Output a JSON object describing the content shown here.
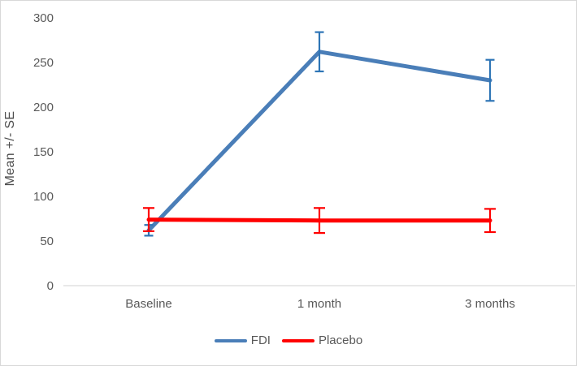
{
  "chart_data": {
    "type": "line",
    "title": "",
    "xlabel": "",
    "ylabel": "Mean +/- SE",
    "categories": [
      "Baseline",
      "1 month",
      "3 months"
    ],
    "series": [
      {
        "name": "FDI",
        "color": "#4a7eb8",
        "error_color": "#2e75b6",
        "values": [
          62,
          262,
          230
        ],
        "se": [
          6,
          22,
          23
        ]
      },
      {
        "name": "Placebo",
        "color": "#ff0000",
        "error_color": "#ff0000",
        "values": [
          74,
          73,
          73
        ],
        "se": [
          13,
          14,
          13
        ]
      }
    ],
    "ylim": [
      0,
      300
    ],
    "yticks": [
      0,
      50,
      100,
      150,
      200,
      250,
      300
    ],
    "grid": false,
    "error_bars": true,
    "legend_position": "bottom"
  },
  "colors": {
    "background": "#ffffff",
    "frame_border": "#d8d8d8",
    "axis_line": "#d9d9d9",
    "tick_text": "#595959",
    "axis_title_text": "#4d4d4d"
  }
}
